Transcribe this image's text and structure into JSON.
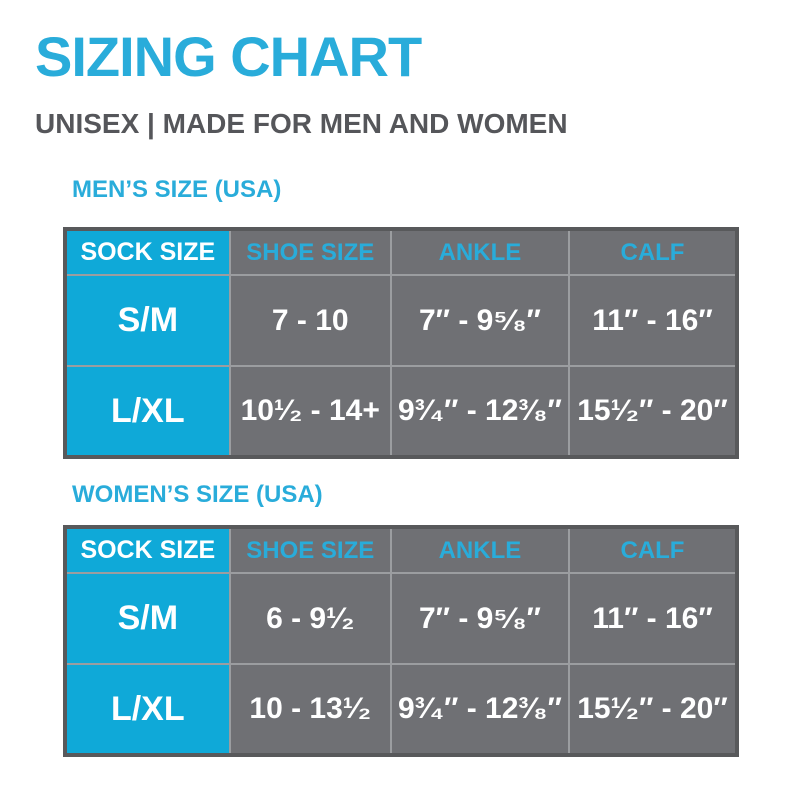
{
  "page": {
    "title": "SIZING CHART",
    "subtitle": "UNISEX | MADE FOR MEN AND WOMEN"
  },
  "colors": {
    "accent": "#29ACDA",
    "cell_cyan": "#0FA9D8",
    "cell_gray": "#6F7074",
    "border_dark": "#58595B",
    "grid_line": "#9B9DA0",
    "cyan_grid": "#CBEAF5",
    "subtitle_text": "#55565A",
    "text_white": "#FFFFFF"
  },
  "tables": [
    {
      "section_title": "MEN’S SIZE (USA)",
      "headers": [
        "SOCK SIZE",
        "SHOE SIZE",
        "ANKLE",
        "CALF"
      ],
      "rows": [
        {
          "label": "S/M",
          "values": [
            "7 - 10",
            "7″ - 9⁵⁄₈″",
            "11″ - 16″"
          ]
        },
        {
          "label": "L/XL",
          "values": [
            "10¹⁄₂ - 14+",
            "9³⁄₄″ - 12³⁄₈″",
            "15¹⁄₂″ - 20″"
          ]
        }
      ]
    },
    {
      "section_title": "WOMEN’S SIZE (USA)",
      "headers": [
        "SOCK SIZE",
        "SHOE SIZE",
        "ANKLE",
        "CALF"
      ],
      "rows": [
        {
          "label": "S/M",
          "values": [
            "6 - 9¹⁄₂",
            "7″ - 9⁵⁄₈″",
            "11″ - 16″"
          ]
        },
        {
          "label": "L/XL",
          "values": [
            "10 - 13¹⁄₂",
            "9³⁄₄″ - 12³⁄₈″",
            "15¹⁄₂″ - 20″"
          ]
        }
      ]
    }
  ]
}
